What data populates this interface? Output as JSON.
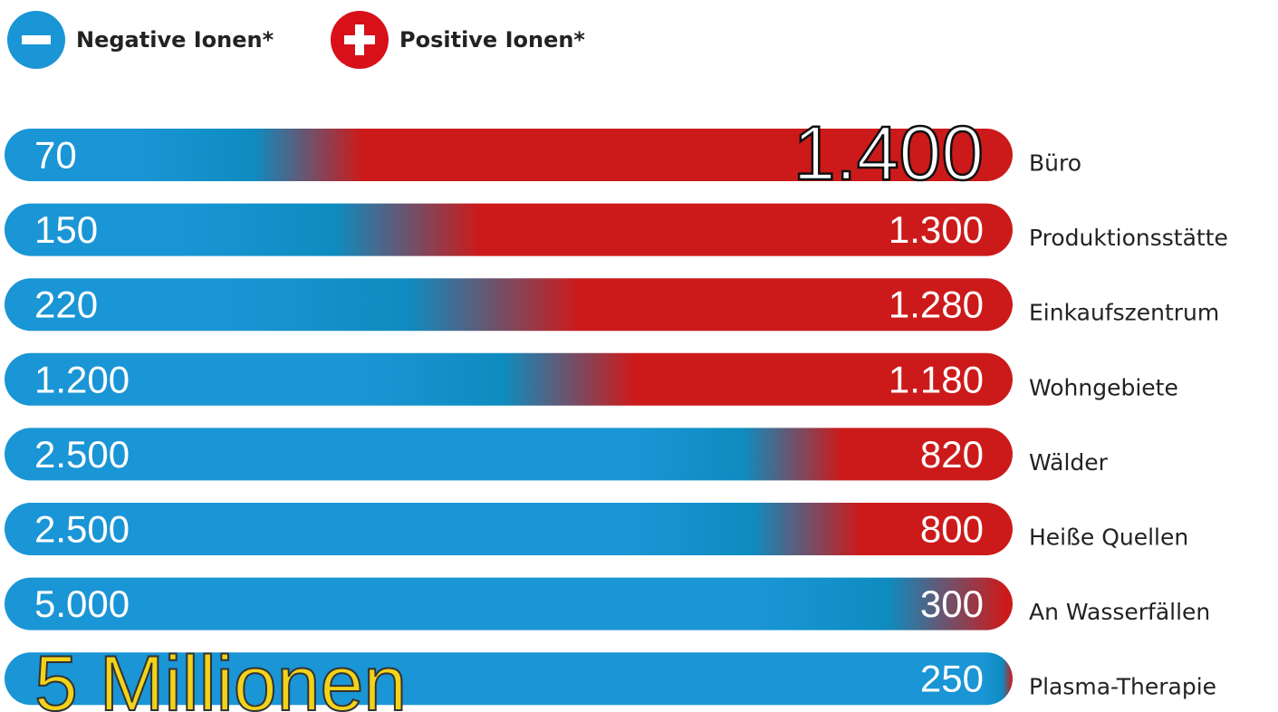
{
  "legend": {
    "negative": "Negative Ionen*",
    "positive": "Positive Ionen*"
  },
  "rows": [
    {
      "negative": "70",
      "positive": "1.400",
      "label": "Büro"
    },
    {
      "negative": "150",
      "positive": "1.300",
      "label": "Produktionsstätte"
    },
    {
      "negative": "220",
      "positive": "1.280",
      "label": "Einkaufszentrum"
    },
    {
      "negative": "1.200",
      "positive": "1.180",
      "label": "Wohngebiete"
    },
    {
      "negative": "2.500",
      "positive": "820",
      "label": "Wälder"
    },
    {
      "negative": "2.500",
      "positive": "800",
      "label": "Heiße Quellen"
    },
    {
      "negative": "5.000",
      "positive": "300",
      "label": "An Wasserfällen"
    },
    {
      "negative": "5 Millionen",
      "positive": "250",
      "label": "Plasma-Therapie"
    }
  ]
}
